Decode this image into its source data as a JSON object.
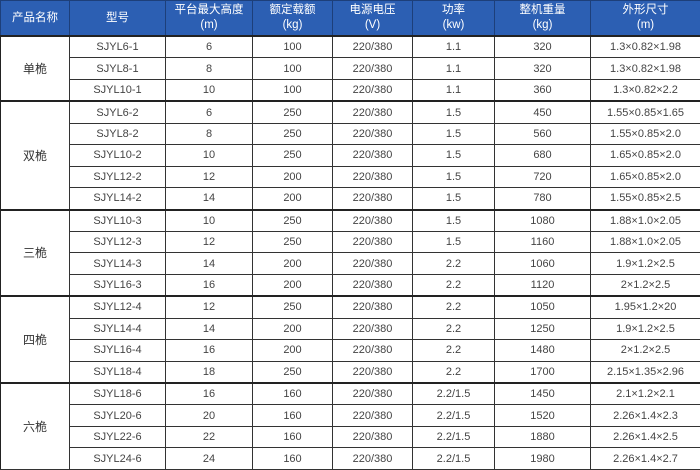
{
  "headers": [
    {
      "title": "产品名称",
      "unit": ""
    },
    {
      "title": "型号",
      "unit": ""
    },
    {
      "title": "平台最大高度",
      "unit": "(m)"
    },
    {
      "title": "额定载额",
      "unit": "(kg)"
    },
    {
      "title": "电源电压",
      "unit": "(V)"
    },
    {
      "title": "功率",
      "unit": "(kw)"
    },
    {
      "title": "整机重量",
      "unit": "(kg)"
    },
    {
      "title": "外形尺寸",
      "unit": "(m)"
    }
  ],
  "colors": {
    "header_bg": "#2c5fb3",
    "header_text": "#ffffff"
  },
  "groups": [
    {
      "name": "单桅",
      "rows": [
        [
          "SJYL6-1",
          "6",
          "100",
          "220/380",
          "1.1",
          "320",
          "1.3×0.82×1.98"
        ],
        [
          "SJYL8-1",
          "8",
          "100",
          "220/380",
          "1.1",
          "320",
          "1.3×0.82×1.98"
        ],
        [
          "SJYL10-1",
          "10",
          "100",
          "220/380",
          "1.1",
          "360",
          "1.3×0.82×2.2"
        ]
      ]
    },
    {
      "name": "双桅",
      "rows": [
        [
          "SJYL6-2",
          "6",
          "250",
          "220/380",
          "1.5",
          "450",
          "1.55×0.85×1.65"
        ],
        [
          "SJYL8-2",
          "8",
          "250",
          "220/380",
          "1.5",
          "560",
          "1.55×0.85×2.0"
        ],
        [
          "SJYL10-2",
          "10",
          "250",
          "220/380",
          "1.5",
          "680",
          "1.65×0.85×2.0"
        ],
        [
          "SJYL12-2",
          "12",
          "200",
          "220/380",
          "1.5",
          "720",
          "1.65×0.85×2.0"
        ],
        [
          "SJYL14-2",
          "14",
          "200",
          "220/380",
          "1.5",
          "780",
          "1.55×0.85×2.5"
        ]
      ]
    },
    {
      "name": "三桅",
      "rows": [
        [
          "SJYL10-3",
          "10",
          "250",
          "220/380",
          "1.5",
          "1080",
          "1.88×1.0×2.05"
        ],
        [
          "SJYL12-3",
          "12",
          "250",
          "220/380",
          "1.5",
          "1160",
          "1.88×1.0×2.05"
        ],
        [
          "SJYL14-3",
          "14",
          "200",
          "220/380",
          "2.2",
          "1060",
          "1.9×1.2×2.5"
        ],
        [
          "SJYL16-3",
          "16",
          "200",
          "220/380",
          "2.2",
          "1120",
          "2×1.2×2.5"
        ]
      ]
    },
    {
      "name": "四桅",
      "rows": [
        [
          "SJYL12-4",
          "12",
          "250",
          "220/380",
          "2.2",
          "1050",
          "1.95×1.2×20"
        ],
        [
          "SJYL14-4",
          "14",
          "200",
          "220/380",
          "2.2",
          "1250",
          "1.9×1.2×2.5"
        ],
        [
          "SJYL16-4",
          "16",
          "200",
          "220/380",
          "2.2",
          "1480",
          "2×1.2×2.5"
        ],
        [
          "SJYL18-4",
          "18",
          "250",
          "220/380",
          "2.2",
          "1700",
          "2.15×1.35×2.96"
        ]
      ]
    },
    {
      "name": "六桅",
      "rows": [
        [
          "SJYL18-6",
          "16",
          "160",
          "220/380",
          "2.2/1.5",
          "1450",
          "2.1×1.2×2.1"
        ],
        [
          "SJYL20-6",
          "20",
          "160",
          "220/380",
          "2.2/1.5",
          "1520",
          "2.26×1.4×2.3"
        ],
        [
          "SJYL22-6",
          "22",
          "160",
          "220/380",
          "2.2/1.5",
          "1880",
          "2.26×1.4×2.5"
        ],
        [
          "SJYL24-6",
          "24",
          "160",
          "220/380",
          "2.2/1.5",
          "1980",
          "2.26×1.4×2.7"
        ]
      ]
    }
  ]
}
